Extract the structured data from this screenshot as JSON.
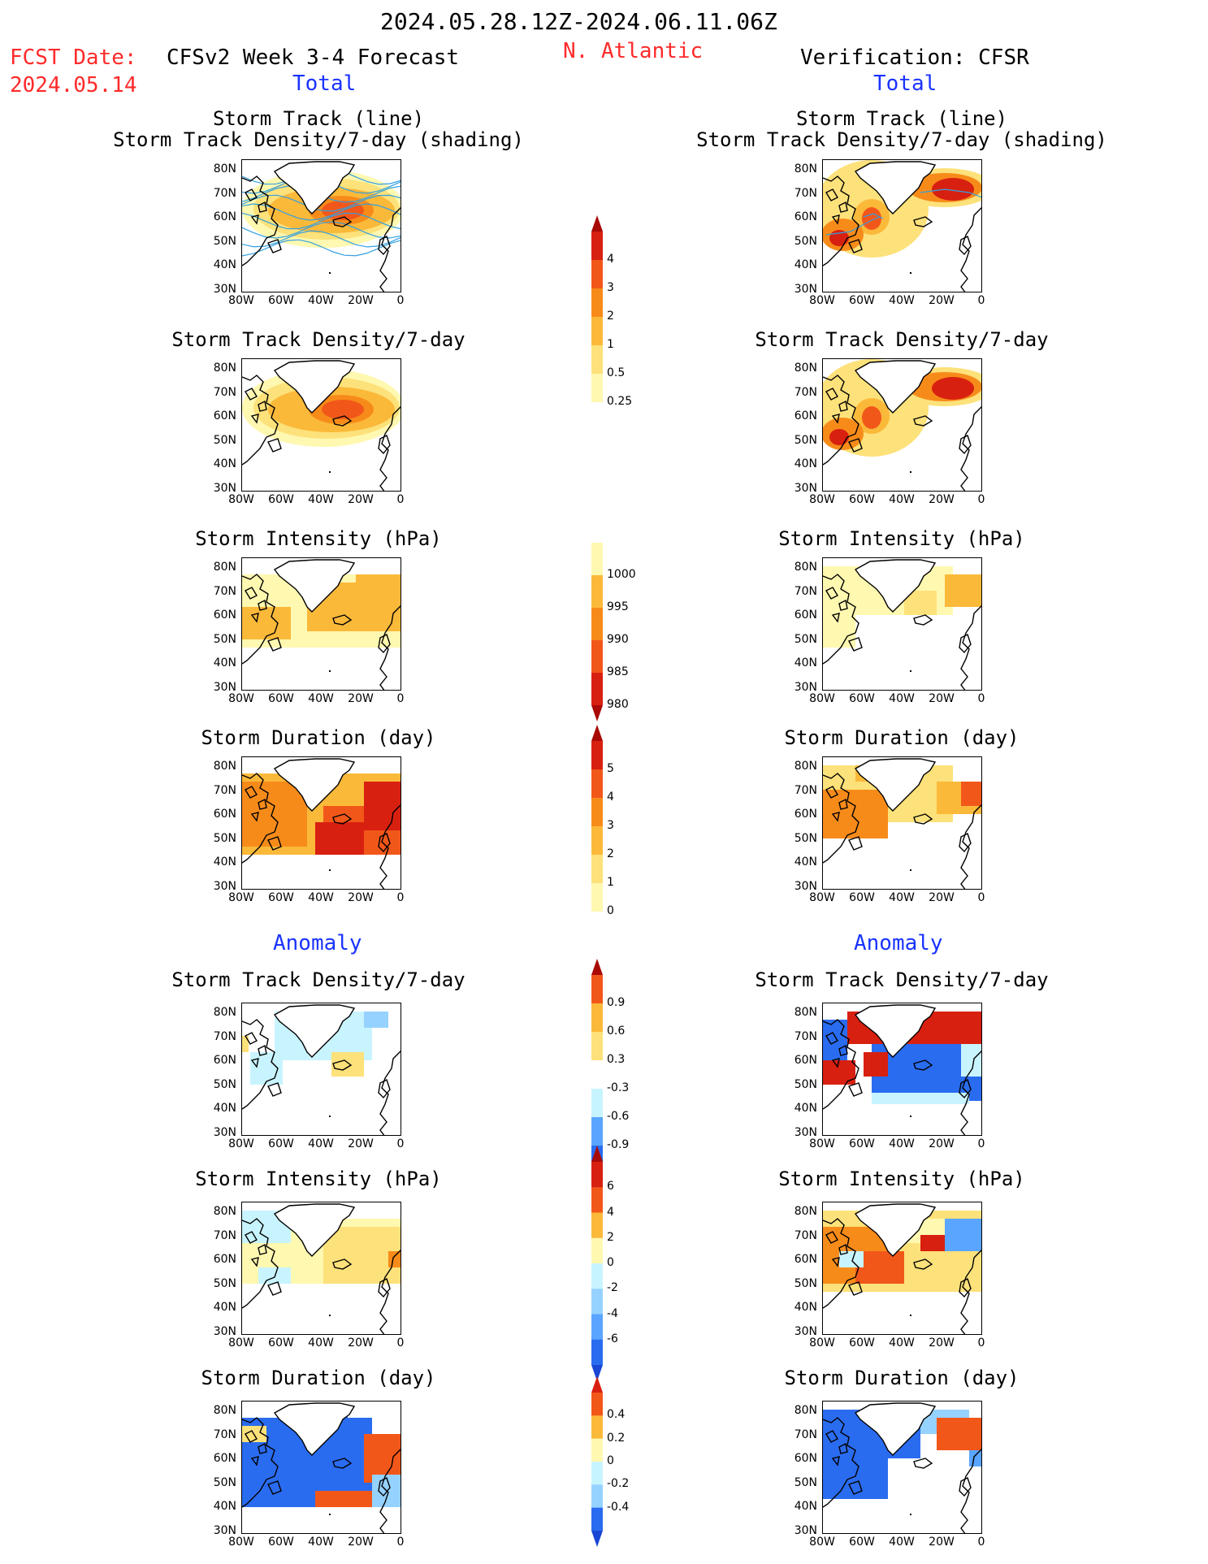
{
  "header": {
    "date_range": "2024.05.28.12Z-2024.06.11.06Z",
    "fcst_date_label": "FCST Date:",
    "fcst_date_value": "2024.05.14",
    "model_title": "CFSv2 Week 3-4 Forecast",
    "region": "N. Atlantic",
    "verification": "Verification: CFSR"
  },
  "sections": {
    "total": "Total",
    "anomaly": "Anomaly"
  },
  "panel_titles": {
    "track_line": "Storm Track (line)",
    "track_shading": "Storm Track Density/7-day (shading)",
    "density": "Storm Track Density/7-day",
    "intensity": "Storm Intensity (hPa)",
    "duration": "Storm Duration (day)"
  },
  "axes": {
    "lat_ticks": [
      "80N",
      "70N",
      "60N",
      "50N",
      "40N",
      "30N"
    ],
    "lon_ticks": [
      "80W",
      "60W",
      "40W",
      "20W",
      "0"
    ]
  },
  "colorbars": {
    "density_total": [
      "4",
      "3",
      "2",
      "1",
      "0.5",
      "0.25"
    ],
    "intensity_total": [
      "1000",
      "995",
      "990",
      "985",
      "980"
    ],
    "duration_total": [
      "5",
      "4",
      "3",
      "2",
      "1",
      "0"
    ],
    "density_anom": [
      "0.9",
      "0.6",
      "0.3",
      "-0.3",
      "-0.6",
      "-0.9"
    ],
    "intensity_anom": [
      "6",
      "4",
      "2",
      "0",
      "-2",
      "-4",
      "-6"
    ],
    "duration_anom": [
      "0.4",
      "0.2",
      "0",
      "-0.2",
      "-0.4"
    ]
  },
  "colors": {
    "title_red": "#ff2a2a",
    "section_blue": "#1a33ff",
    "track_line": "#33a0e0",
    "warm": [
      "#fff8b0",
      "#fde17a",
      "#fbb93a",
      "#f78b1a",
      "#f2571a",
      "#d82010",
      "#a80a05"
    ],
    "cool": [
      "#c8f4ff",
      "#96d2ff",
      "#5aa5ff",
      "#2a6cf0",
      "#1a46d6"
    ]
  }
}
